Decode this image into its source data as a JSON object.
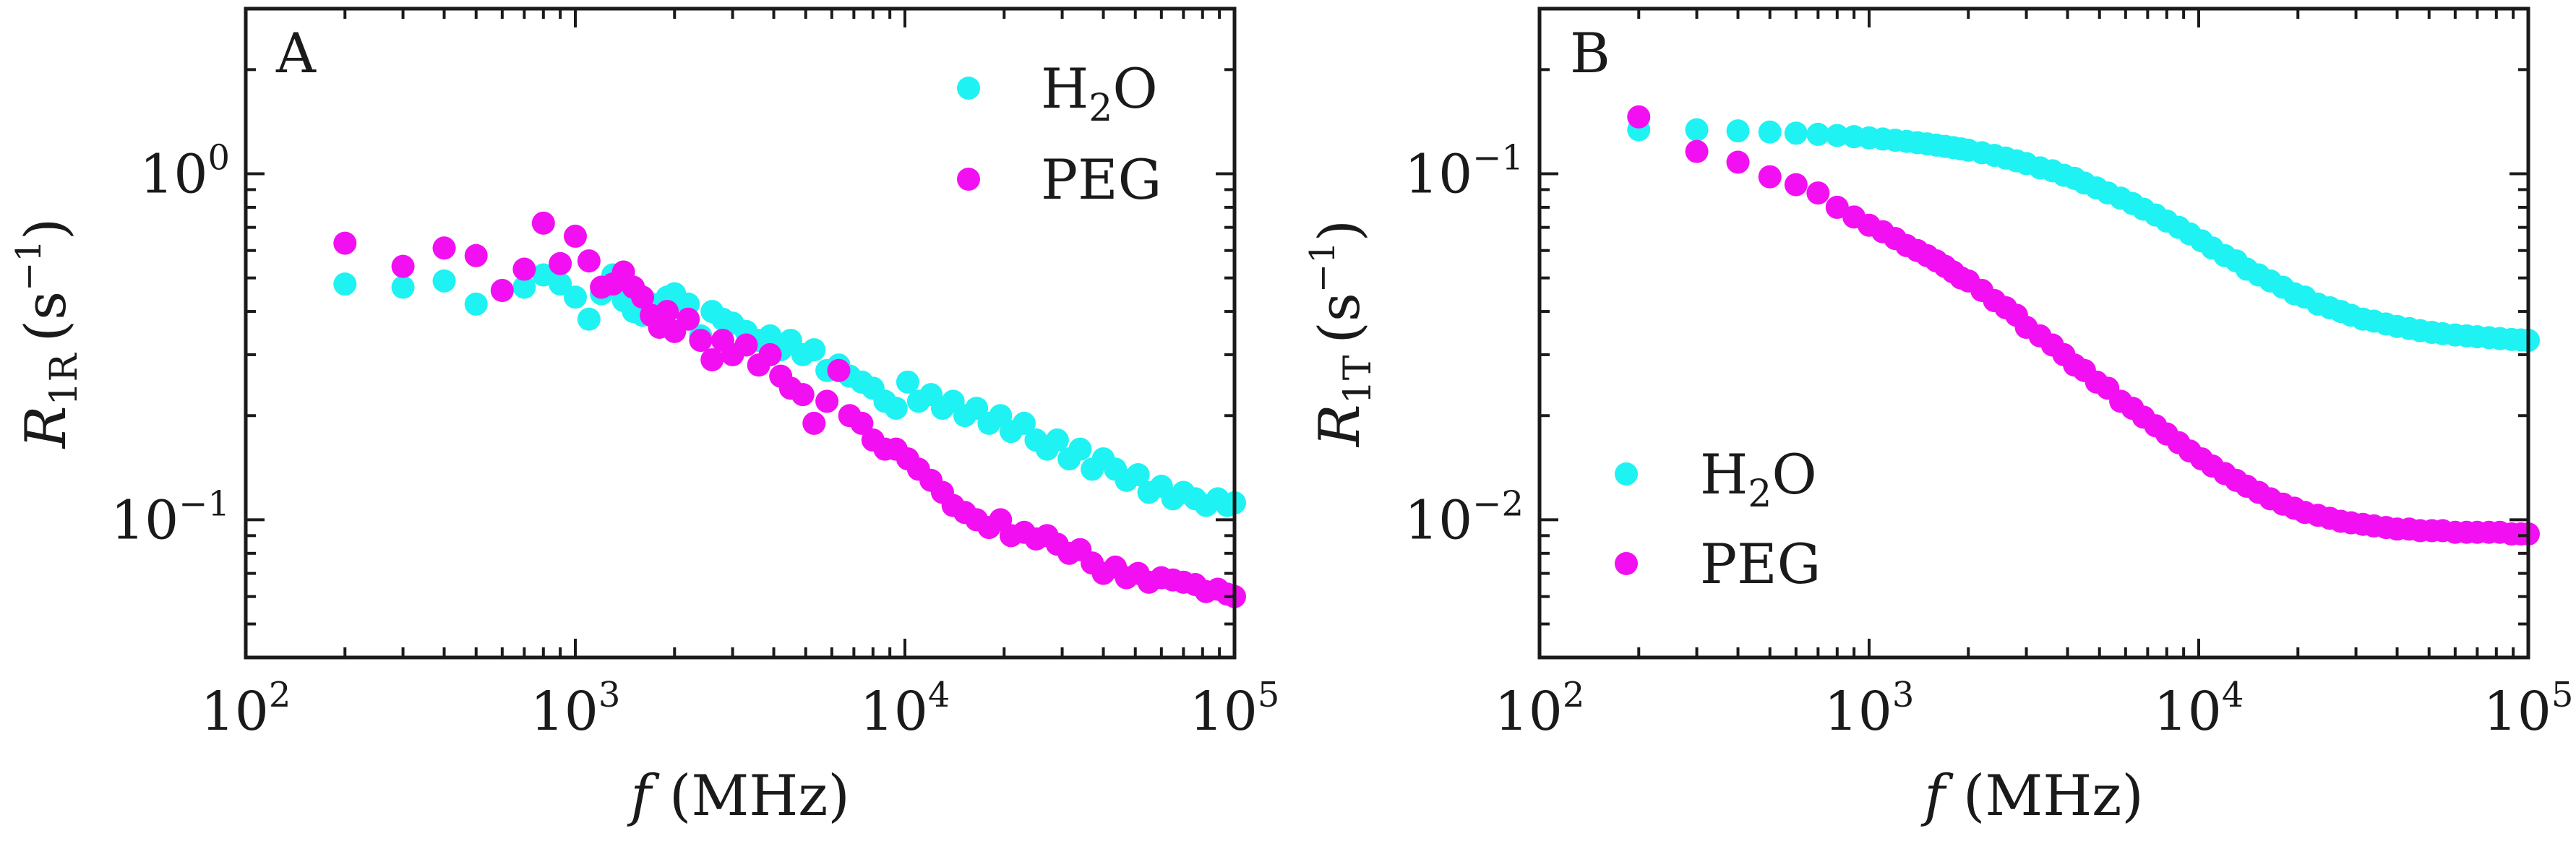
{
  "figure": {
    "colors": {
      "h2o": "#1ff2f2",
      "peg": "#f20ff2",
      "axis": "#1a1a1a"
    }
  },
  "chart_data": [
    {
      "type": "scatter",
      "panel_label": "A",
      "xlabel": {
        "var": "f",
        "unit": "(MHz)"
      },
      "ylabel": {
        "var": "R",
        "sub": "1R",
        "unit_open": "(s",
        "unit_exp": "−1",
        "unit_close": ")"
      },
      "x_scale": "log",
      "y_scale": "log",
      "xlim": [
        100,
        100000
      ],
      "ylim": [
        0.04,
        3.0
      ],
      "x_ticks": [
        {
          "value": 100,
          "base": "10",
          "exp": "2"
        },
        {
          "value": 1000,
          "base": "10",
          "exp": "3"
        },
        {
          "value": 10000,
          "base": "10",
          "exp": "4"
        },
        {
          "value": 100000,
          "base": "10",
          "exp": "5"
        }
      ],
      "y_ticks": [
        {
          "value": 1,
          "base": "10",
          "exp": "0"
        },
        {
          "value": 0.1,
          "base": "10",
          "exp": "−1"
        }
      ],
      "legend_position": "top-right",
      "series": [
        {
          "key": "h2o",
          "name": "H2O",
          "label_main": "H",
          "label_sub": "2",
          "label_rest": "O",
          "x": [
            200,
            300,
            400,
            500,
            600,
            700,
            800,
            900,
            1000,
            1100,
            1200,
            1300,
            1400,
            1500,
            1600,
            1700,
            1800,
            1900,
            2000,
            2200,
            2400,
            2600,
            2800,
            3000,
            3300,
            3600,
            3900,
            4200,
            4500,
            4900,
            5300,
            5800,
            6300,
            6800,
            7400,
            8000,
            8700,
            9400,
            10200,
            11000,
            12000,
            13000,
            14000,
            15200,
            16500,
            18000,
            19500,
            21000,
            23000,
            25000,
            27000,
            29000,
            31500,
            34000,
            37000,
            40000,
            43500,
            47000,
            51000,
            55000,
            60000,
            65000,
            70000,
            76000,
            82000,
            89000,
            95000,
            100000
          ],
          "y": [
            0.48,
            0.47,
            0.49,
            0.42,
            0.46,
            0.47,
            0.51,
            0.48,
            0.44,
            0.38,
            0.45,
            0.51,
            0.43,
            0.4,
            0.39,
            0.42,
            0.41,
            0.44,
            0.45,
            0.42,
            0.34,
            0.4,
            0.38,
            0.37,
            0.35,
            0.33,
            0.34,
            0.31,
            0.33,
            0.3,
            0.31,
            0.27,
            0.28,
            0.26,
            0.25,
            0.24,
            0.22,
            0.21,
            0.25,
            0.22,
            0.23,
            0.21,
            0.22,
            0.2,
            0.21,
            0.19,
            0.2,
            0.18,
            0.19,
            0.17,
            0.16,
            0.17,
            0.15,
            0.16,
            0.14,
            0.15,
            0.14,
            0.13,
            0.135,
            0.12,
            0.125,
            0.115,
            0.12,
            0.115,
            0.11,
            0.115,
            0.11,
            0.112
          ]
        },
        {
          "key": "peg",
          "name": "PEG",
          "label_main": "PEG",
          "label_sub": "",
          "label_rest": "",
          "x": [
            200,
            300,
            400,
            500,
            600,
            700,
            800,
            900,
            1000,
            1100,
            1200,
            1300,
            1400,
            1500,
            1600,
            1700,
            1800,
            1900,
            2000,
            2200,
            2400,
            2600,
            2800,
            3000,
            3300,
            3600,
            3900,
            4200,
            4500,
            4900,
            5300,
            5800,
            6300,
            6800,
            7400,
            8000,
            8700,
            9400,
            10200,
            11000,
            12000,
            13000,
            14000,
            15200,
            16500,
            18000,
            19500,
            21000,
            23000,
            25000,
            27000,
            29000,
            31500,
            34000,
            37000,
            40000,
            43500,
            47000,
            51000,
            55000,
            60000,
            65000,
            70000,
            76000,
            82000,
            89000,
            95000,
            100000
          ],
          "y": [
            0.63,
            0.54,
            0.61,
            0.58,
            0.46,
            0.53,
            0.72,
            0.55,
            0.66,
            0.56,
            0.47,
            0.48,
            0.52,
            0.47,
            0.44,
            0.39,
            0.36,
            0.4,
            0.35,
            0.38,
            0.33,
            0.29,
            0.33,
            0.3,
            0.32,
            0.28,
            0.3,
            0.26,
            0.24,
            0.23,
            0.19,
            0.22,
            0.27,
            0.2,
            0.19,
            0.17,
            0.16,
            0.16,
            0.15,
            0.14,
            0.13,
            0.12,
            0.11,
            0.105,
            0.1,
            0.095,
            0.1,
            0.09,
            0.092,
            0.088,
            0.09,
            0.085,
            0.08,
            0.082,
            0.075,
            0.07,
            0.073,
            0.068,
            0.07,
            0.066,
            0.068,
            0.067,
            0.066,
            0.065,
            0.062,
            0.063,
            0.061,
            0.06
          ]
        }
      ]
    },
    {
      "type": "scatter",
      "panel_label": "B",
      "xlabel": {
        "var": "f",
        "unit": "(MHz)"
      },
      "ylabel": {
        "var": "R",
        "sub": "1T",
        "unit_open": "(s",
        "unit_exp": "−1",
        "unit_close": ")"
      },
      "x_scale": "log",
      "y_scale": "log",
      "xlim": [
        100,
        100000
      ],
      "ylim": [
        0.004,
        0.3
      ],
      "x_ticks": [
        {
          "value": 100,
          "base": "10",
          "exp": "2"
        },
        {
          "value": 1000,
          "base": "10",
          "exp": "3"
        },
        {
          "value": 10000,
          "base": "10",
          "exp": "4"
        },
        {
          "value": 100000,
          "base": "10",
          "exp": "5"
        }
      ],
      "y_ticks": [
        {
          "value": 0.1,
          "base": "10",
          "exp": "−1"
        },
        {
          "value": 0.01,
          "base": "10",
          "exp": "−2"
        }
      ],
      "legend_position": "bottom-left",
      "series": [
        {
          "key": "h2o",
          "name": "H2O",
          "label_main": "H",
          "label_sub": "2",
          "label_rest": "O",
          "x": [
            200,
            300,
            400,
            500,
            600,
            700,
            800,
            900,
            1000,
            1100,
            1200,
            1300,
            1400,
            1500,
            1600,
            1700,
            1800,
            1900,
            2000,
            2200,
            2400,
            2600,
            2800,
            3000,
            3300,
            3600,
            3900,
            4200,
            4500,
            4900,
            5300,
            5800,
            6300,
            6800,
            7400,
            8000,
            8700,
            9400,
            10200,
            11000,
            12000,
            13000,
            14000,
            15200,
            16500,
            18000,
            19500,
            21000,
            23000,
            25000,
            27000,
            29000,
            31500,
            34000,
            37000,
            40000,
            43500,
            47000,
            51000,
            55000,
            60000,
            65000,
            70000,
            76000,
            82000,
            89000,
            95000,
            100000
          ],
          "y": [
            0.134,
            0.134,
            0.133,
            0.132,
            0.131,
            0.13,
            0.129,
            0.128,
            0.127,
            0.126,
            0.125,
            0.124,
            0.123,
            0.122,
            0.121,
            0.12,
            0.119,
            0.118,
            0.117,
            0.115,
            0.113,
            0.111,
            0.109,
            0.107,
            0.104,
            0.102,
            0.099,
            0.097,
            0.094,
            0.091,
            0.088,
            0.085,
            0.082,
            0.079,
            0.076,
            0.073,
            0.07,
            0.067,
            0.064,
            0.061,
            0.058,
            0.056,
            0.053,
            0.051,
            0.049,
            0.047,
            0.045,
            0.044,
            0.042,
            0.041,
            0.04,
            0.039,
            0.038,
            0.0375,
            0.0368,
            0.0362,
            0.0357,
            0.0352,
            0.0348,
            0.0345,
            0.0342,
            0.034,
            0.0338,
            0.0336,
            0.0334,
            0.0332,
            0.0331,
            0.033
          ]
        },
        {
          "key": "peg",
          "name": "PEG",
          "label_main": "PEG",
          "label_sub": "",
          "label_rest": "",
          "x": [
            200,
            300,
            400,
            500,
            600,
            700,
            800,
            900,
            1000,
            1100,
            1200,
            1300,
            1400,
            1500,
            1600,
            1700,
            1800,
            1900,
            2000,
            2200,
            2400,
            2600,
            2800,
            3000,
            3300,
            3600,
            3900,
            4200,
            4500,
            4900,
            5300,
            5800,
            6300,
            6800,
            7400,
            8000,
            8700,
            9400,
            10200,
            11000,
            12000,
            13000,
            14000,
            15200,
            16500,
            18000,
            19500,
            21000,
            23000,
            25000,
            27000,
            29000,
            31500,
            34000,
            37000,
            40000,
            43500,
            47000,
            51000,
            55000,
            60000,
            65000,
            70000,
            76000,
            82000,
            89000,
            95000,
            100000
          ],
          "y": [
            0.146,
            0.116,
            0.108,
            0.098,
            0.093,
            0.088,
            0.08,
            0.075,
            0.071,
            0.068,
            0.065,
            0.062,
            0.06,
            0.058,
            0.056,
            0.054,
            0.052,
            0.05,
            0.049,
            0.046,
            0.043,
            0.041,
            0.039,
            0.036,
            0.034,
            0.032,
            0.03,
            0.028,
            0.027,
            0.025,
            0.024,
            0.022,
            0.021,
            0.0198,
            0.0187,
            0.0177,
            0.0167,
            0.0158,
            0.015,
            0.0143,
            0.0136,
            0.013,
            0.0125,
            0.012,
            0.0115,
            0.0111,
            0.0108,
            0.0105,
            0.0103,
            0.0101,
            0.0099,
            0.0098,
            0.0097,
            0.0096,
            0.0095,
            0.0094,
            0.0094,
            0.0093,
            0.0093,
            0.0093,
            0.0092,
            0.0092,
            0.0092,
            0.0092,
            0.0092,
            0.0091,
            0.0091,
            0.0091
          ]
        }
      ]
    }
  ]
}
